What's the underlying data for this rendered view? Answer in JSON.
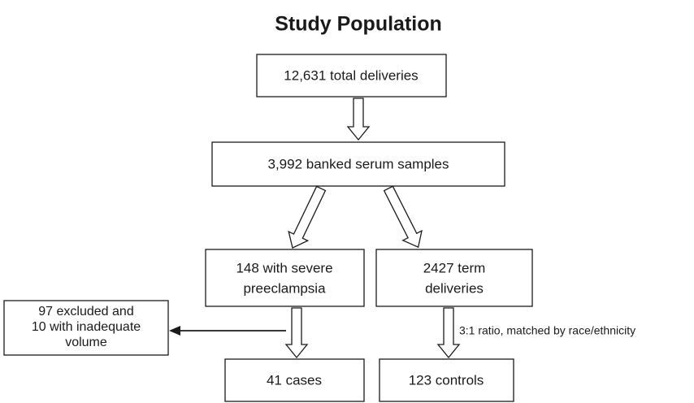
{
  "title": "Study Population",
  "nodes": [
    {
      "lines": [
        "12,631 total deliveries"
      ]
    },
    {
      "lines": [
        "3,992 banked serum samples"
      ]
    },
    {
      "lines": [
        "148 with severe",
        "preeclampsia"
      ]
    },
    {
      "lines": [
        "2427 term",
        "deliveries"
      ]
    },
    {
      "lines": [
        "97 excluded and",
        "10 with inadequate",
        "volume"
      ]
    },
    {
      "lines": [
        "41 cases"
      ]
    },
    {
      "lines": [
        "123 controls"
      ]
    }
  ],
  "edge_label": "3:1 ratio,  matched by race/ethnicity"
}
